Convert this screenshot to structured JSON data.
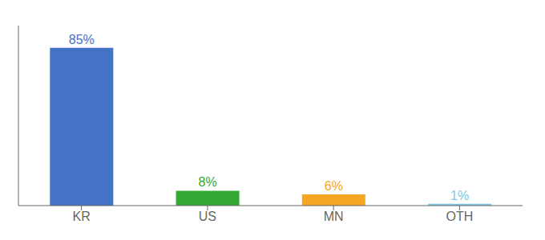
{
  "chart_data": {
    "type": "bar",
    "categories": [
      "KR",
      "US",
      "MN",
      "OTH"
    ],
    "values": [
      85,
      8,
      6,
      1
    ],
    "value_labels": [
      "85%",
      "8%",
      "6%",
      "1%"
    ],
    "colors": [
      "#4472c4",
      "#33a832",
      "#f5a623",
      "#7ec8e3"
    ],
    "ylim": [
      0,
      97
    ],
    "data_labels": true,
    "tick_labels": "x"
  }
}
